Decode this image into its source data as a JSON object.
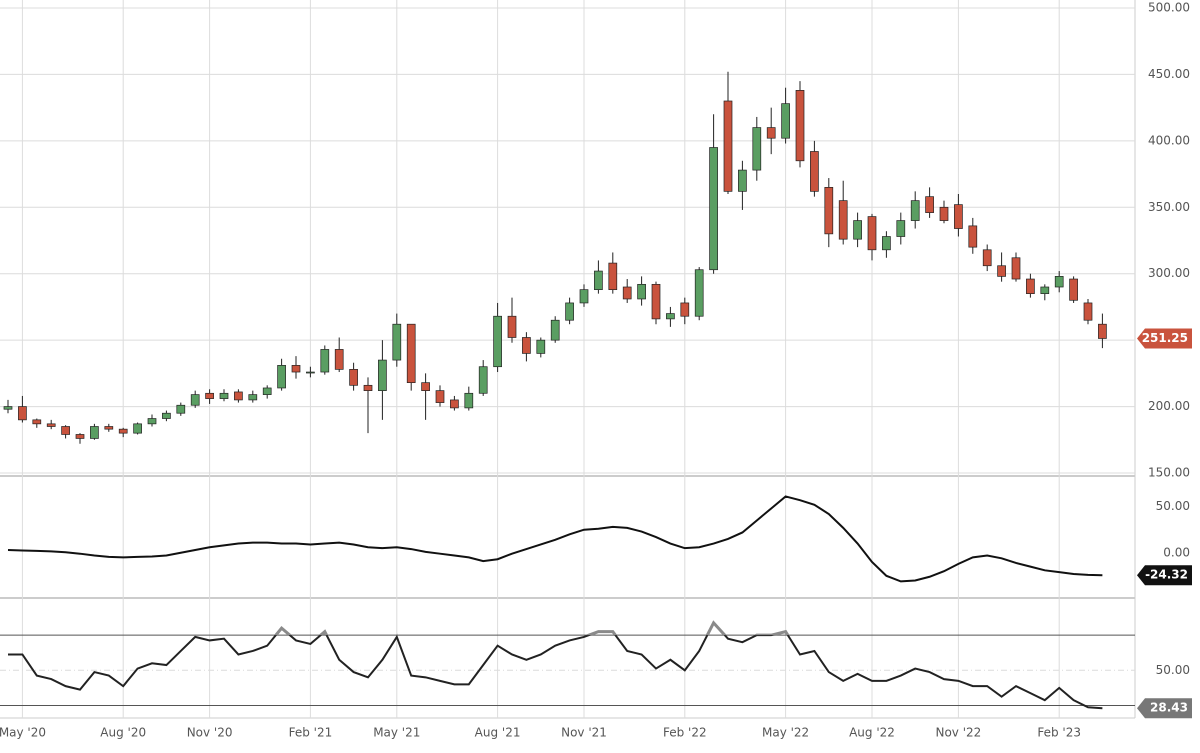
{
  "chart_data": [
    {
      "type": "candlestick",
      "categories": [
        null,
        "May '20",
        null,
        null,
        null,
        null,
        null,
        null,
        "Aug '20",
        null,
        null,
        null,
        null,
        null,
        "Nov '20",
        null,
        null,
        null,
        null,
        null,
        null,
        "Feb '21",
        null,
        null,
        null,
        null,
        null,
        "May '21",
        null,
        null,
        null,
        null,
        null,
        null,
        "Aug '21",
        null,
        null,
        null,
        null,
        null,
        "Nov '21",
        null,
        null,
        null,
        null,
        null,
        null,
        "Feb '22",
        null,
        null,
        null,
        null,
        null,
        null,
        "May '22",
        null,
        null,
        null,
        null,
        null,
        "Aug '22",
        null,
        null,
        null,
        null,
        null,
        "Nov '22",
        null,
        null,
        null,
        null,
        null,
        null,
        "Feb '23",
        null,
        null,
        null
      ],
      "open": [
        198,
        200,
        190,
        187,
        185,
        179,
        176,
        185,
        183,
        180,
        187,
        191,
        195,
        201,
        210,
        206,
        211,
        205,
        209,
        214,
        231,
        226,
        226,
        243,
        228,
        216,
        212,
        235,
        262,
        218,
        212,
        205,
        199,
        210,
        230,
        268,
        252,
        240,
        250,
        265,
        278,
        288,
        308,
        290,
        281,
        292,
        266,
        278,
        268,
        303,
        430,
        362,
        378,
        410,
        402,
        438,
        392,
        365,
        355,
        326,
        343,
        318,
        328,
        340,
        358,
        350,
        352,
        336,
        318,
        306,
        312,
        296,
        285,
        290,
        296,
        278,
        262
      ],
      "high": [
        205,
        208,
        191,
        190,
        186,
        180,
        187,
        187,
        184,
        188,
        194,
        197,
        203,
        212,
        213,
        213,
        213,
        212,
        216,
        236,
        238,
        230,
        246,
        252,
        233,
        222,
        250,
        270,
        262,
        225,
        216,
        208,
        215,
        235,
        278,
        282,
        256,
        252,
        268,
        282,
        292,
        310,
        316,
        296,
        298,
        294,
        275,
        282,
        305,
        420,
        452,
        385,
        418,
        425,
        440,
        445,
        400,
        372,
        370,
        346,
        345,
        332,
        346,
        362,
        365,
        355,
        360,
        342,
        322,
        316,
        316,
        300,
        292,
        302,
        298,
        281,
        270
      ],
      "low": [
        195,
        188,
        184,
        183,
        176,
        172,
        175,
        181,
        177,
        179,
        185,
        189,
        193,
        199,
        202,
        204,
        203,
        203,
        206,
        212,
        221,
        222,
        224,
        226,
        212,
        180,
        190,
        230,
        212,
        190,
        200,
        197,
        197,
        208,
        226,
        248,
        234,
        237,
        248,
        262,
        275,
        285,
        285,
        278,
        276,
        262,
        260,
        262,
        265,
        300,
        360,
        348,
        370,
        390,
        398,
        380,
        358,
        320,
        322,
        320,
        310,
        312,
        322,
        334,
        342,
        338,
        328,
        315,
        302,
        294,
        294,
        282,
        280,
        286,
        278,
        262,
        244
      ],
      "close": [
        200,
        190,
        187,
        185,
        179,
        176,
        185,
        183,
        180,
        187,
        191,
        195,
        201,
        209,
        206,
        210,
        205,
        209,
        214,
        231,
        226,
        226,
        243,
        228,
        216,
        212,
        235,
        262,
        218,
        212,
        203,
        199,
        210,
        230,
        268,
        252,
        240,
        250,
        265,
        278,
        288,
        302,
        288,
        281,
        292,
        266,
        270,
        268,
        303,
        395,
        362,
        378,
        410,
        402,
        428,
        385,
        362,
        330,
        326,
        340,
        318,
        328,
        340,
        355,
        346,
        340,
        334,
        320,
        306,
        298,
        296,
        285,
        290,
        298,
        280,
        265,
        251.25
      ],
      "last_close_label": "251.25",
      "up_color": "#5a9e62",
      "down_color": "#c9533d",
      "ylim": [
        150,
        500
      ],
      "yticks": [
        {
          "value": 150,
          "label": "150.00"
        },
        {
          "value": 200,
          "label": "200.00"
        },
        {
          "value": 250,
          "label": "250.00"
        },
        {
          "value": 300,
          "label": "300.00"
        },
        {
          "value": 350,
          "label": "350.00"
        },
        {
          "value": 400,
          "label": "400.00"
        },
        {
          "value": 450,
          "label": "450.00"
        },
        {
          "value": 500,
          "label": "500.00"
        }
      ],
      "grid": true
    },
    {
      "type": "line",
      "values": [
        3,
        2.5,
        2,
        1.5,
        0.5,
        -1,
        -3,
        -4.5,
        -5,
        -4.5,
        -4,
        -3,
        0,
        3,
        6,
        8,
        10,
        11,
        11,
        10,
        10,
        9,
        10,
        11,
        9,
        6,
        5,
        6,
        4,
        1,
        -1,
        -3,
        -5,
        -9,
        -7,
        -1,
        4,
        9,
        14,
        20,
        25,
        26,
        28,
        27,
        23,
        17,
        10,
        5,
        6,
        10,
        15,
        22,
        35,
        48,
        61,
        57,
        52,
        42,
        27,
        10,
        -10,
        -25,
        -31,
        -30,
        -26,
        -20,
        -12,
        -5,
        -3,
        -6,
        -11,
        -15,
        -19,
        -21,
        -23,
        -24,
        -24.32
      ],
      "last_value_label": "-24.32",
      "color": "#111",
      "ylim": [
        -49,
        81
      ],
      "yticks": [
        {
          "value": 0,
          "label": "0.00"
        },
        {
          "value": 50,
          "label": "50.00"
        }
      ]
    },
    {
      "type": "line",
      "values": [
        59,
        59,
        47,
        45,
        41,
        39,
        49,
        47,
        41,
        51,
        54,
        53,
        61,
        69,
        67,
        68,
        59,
        61,
        64,
        74,
        67,
        65,
        72,
        56,
        49,
        46,
        56,
        69,
        47,
        46,
        44,
        42,
        42,
        53,
        64,
        59,
        56,
        59,
        64,
        67,
        69,
        72,
        72,
        61,
        59,
        51,
        56,
        50,
        61,
        77,
        68,
        66,
        70,
        70,
        72,
        59,
        61,
        49,
        44,
        48,
        44,
        44,
        47,
        51,
        49,
        45,
        44,
        41,
        41,
        35,
        41,
        37,
        33,
        40,
        33,
        29,
        28.43
      ],
      "last_value_label": "28.43",
      "color": "#222",
      "overbought_color": "#8a8a8a",
      "levels": [
        70,
        30
      ],
      "ylim": [
        24,
        90
      ],
      "yticks": [
        {
          "value": 50,
          "label": "50.00"
        }
      ]
    }
  ]
}
